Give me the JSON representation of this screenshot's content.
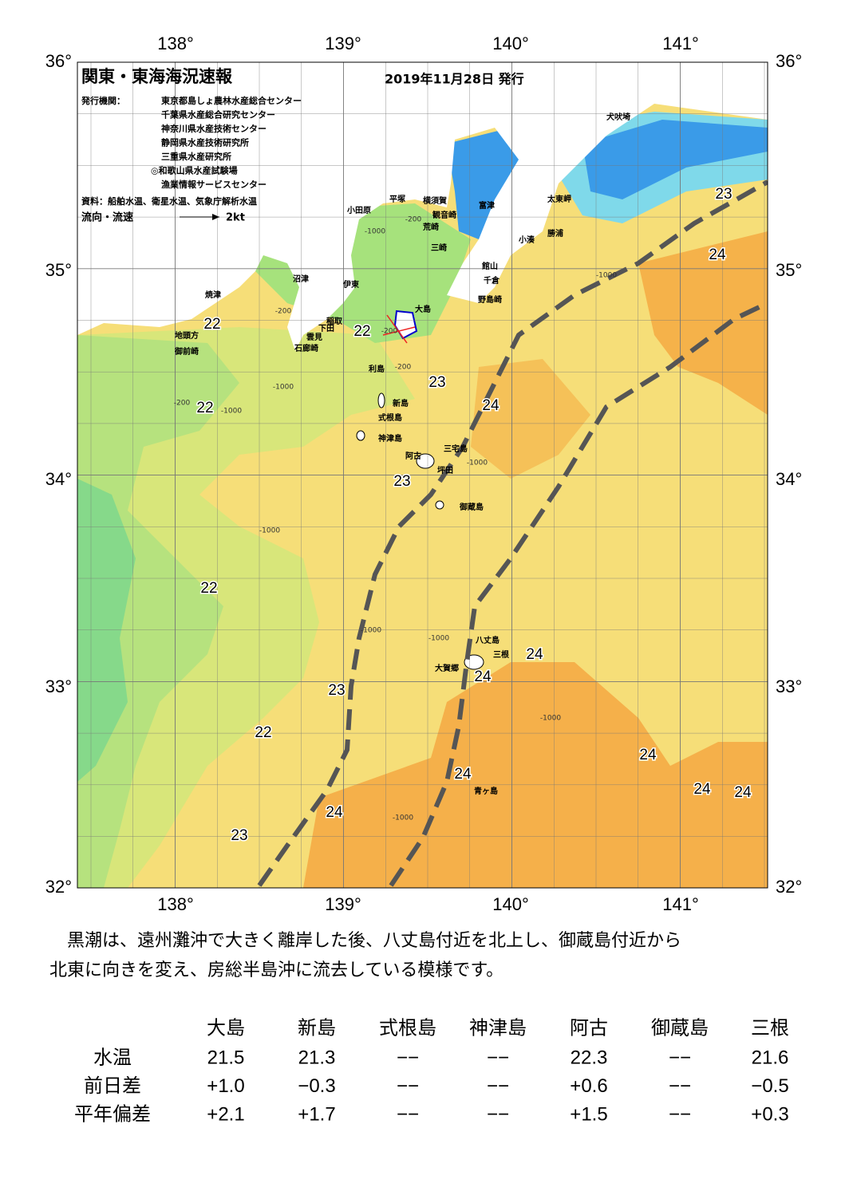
{
  "header": {
    "title": "関東・東海海況速報",
    "date": "2019年11月28日 発行",
    "issuer_label": "発行機関：",
    "issuers": [
      "東京都島しょ農林水産総合センター",
      "千葉県水産総合研究センター",
      "神奈川県水産技術センター",
      "静岡県水産技術研究所",
      "三重県水産研究所",
      "◎和歌山県水産試験場",
      "漁業情報サービスセンター"
    ],
    "source": "資料：船舶水温、衛星水温、気象庁解析水温",
    "legend_label": "流向・流速",
    "legend_speed": "2kt"
  },
  "map": {
    "lon_labels": [
      "138°",
      "139°",
      "140°",
      "141°"
    ],
    "lat_labels": [
      "36°",
      "35°",
      "34°",
      "33°",
      "32°"
    ],
    "place_names": [
      "犬吠埼",
      "太東岬",
      "勝浦",
      "小湊",
      "館山",
      "千倉",
      "野島崎",
      "富津",
      "横須賀",
      "観音崎",
      "荒崎",
      "三崎",
      "平塚",
      "小田原",
      "沼津",
      "伊東",
      "大島",
      "稲取",
      "下田",
      "雲見",
      "石廊崎",
      "焼津",
      "地頭方",
      "御前崎",
      "利島",
      "新島",
      "式根島",
      "神津島",
      "三宅島",
      "阿古",
      "坪田",
      "御蔵島",
      "八丈島",
      "三根",
      "大賀郷",
      "青ヶ島"
    ],
    "temperature_labels": [
      "22",
      "22",
      "23",
      "22",
      "24",
      "23",
      "22",
      "23",
      "22",
      "24",
      "24",
      "24",
      "24",
      "24",
      "24",
      "24",
      "23",
      "23",
      "24"
    ],
    "depth_labels": [
      "-200",
      "-1000",
      "-200",
      "-200",
      "-1000",
      "-200",
      "-1000",
      "-200",
      "-1000",
      "-1000",
      "-1000",
      "-1000",
      "-1000",
      "-1000",
      "-1000"
    ]
  },
  "summary": [
    "　黒潮は、遠州灘沖で大きく離岸した後、八丈島付近を北上し、御蔵島付近から",
    "北東に向きを変え、房総半島沖に流去している模様です。"
  ],
  "table": {
    "columns": [
      "大島",
      "新島",
      "式根島",
      "神津島",
      "阿古",
      "御蔵島",
      "三根"
    ],
    "rows": [
      {
        "label": "水温",
        "values": [
          "21.5",
          "21.3",
          "−−",
          "−−",
          "22.3",
          "−−",
          "21.6"
        ]
      },
      {
        "label": "前日差",
        "values": [
          "+1.0",
          "−0.3",
          "−−",
          "−−",
          "+0.6",
          "−−",
          "−0.5"
        ]
      },
      {
        "label": "平年偏差",
        "values": [
          "+2.1",
          "+1.7",
          "−−",
          "−−",
          "+1.5",
          "−−",
          "+0.3"
        ]
      }
    ]
  }
}
